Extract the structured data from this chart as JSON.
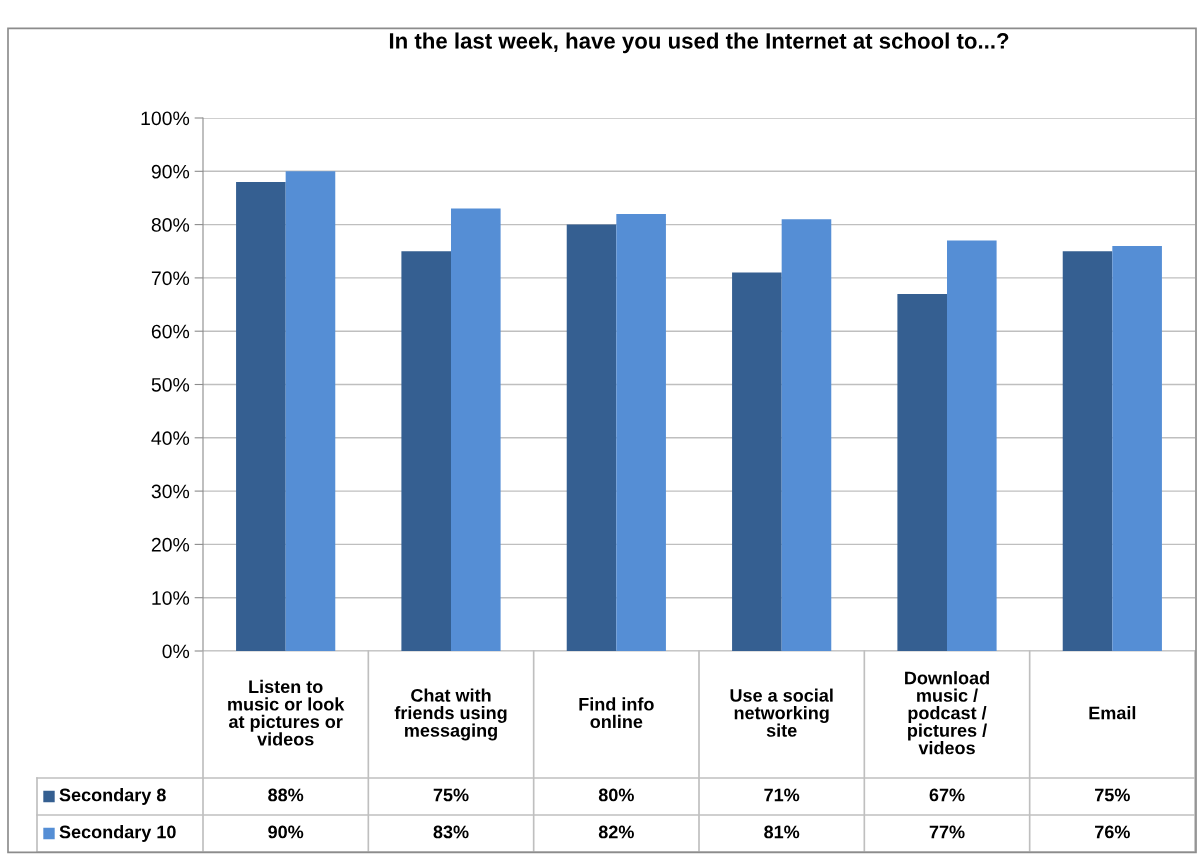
{
  "chart_data": {
    "type": "bar",
    "title": "In the last week, have you used the Internet at school to...?",
    "categories": [
      "Listen to\nmusic or look\nat pictures or\nvideos",
      "Chat with\nfriends using\nmessaging",
      "Find info\nonline",
      "Use a social\nnetworking\nsite",
      "Download\nmusic /\npodcast /\npictures /\nvideos",
      "Email"
    ],
    "series": [
      {
        "name": "Secondary 8",
        "color": "#355f91",
        "values": [
          88,
          75,
          80,
          71,
          67,
          75
        ],
        "value_labels": [
          "88%",
          "75%",
          "80%",
          "71%",
          "67%",
          "75%"
        ]
      },
      {
        "name": "Secondary 10",
        "color": "#558ed5",
        "values": [
          90,
          83,
          82,
          81,
          77,
          76
        ],
        "value_labels": [
          "90%",
          "83%",
          "82%",
          "81%",
          "77%",
          "76%"
        ]
      }
    ],
    "ylim": [
      0,
      100
    ],
    "yticks": [
      {
        "value": 0,
        "label": "0%"
      },
      {
        "value": 10,
        "label": "10%"
      },
      {
        "value": 20,
        "label": "20%"
      },
      {
        "value": 30,
        "label": "30%"
      },
      {
        "value": 40,
        "label": "40%"
      },
      {
        "value": 50,
        "label": "50%"
      },
      {
        "value": 60,
        "label": "60%"
      },
      {
        "value": 70,
        "label": "70%"
      },
      {
        "value": 80,
        "label": "80%"
      },
      {
        "value": 90,
        "label": "90%"
      },
      {
        "value": 100,
        "label": "100%"
      }
    ],
    "grid": "y",
    "legend": "bottom"
  }
}
